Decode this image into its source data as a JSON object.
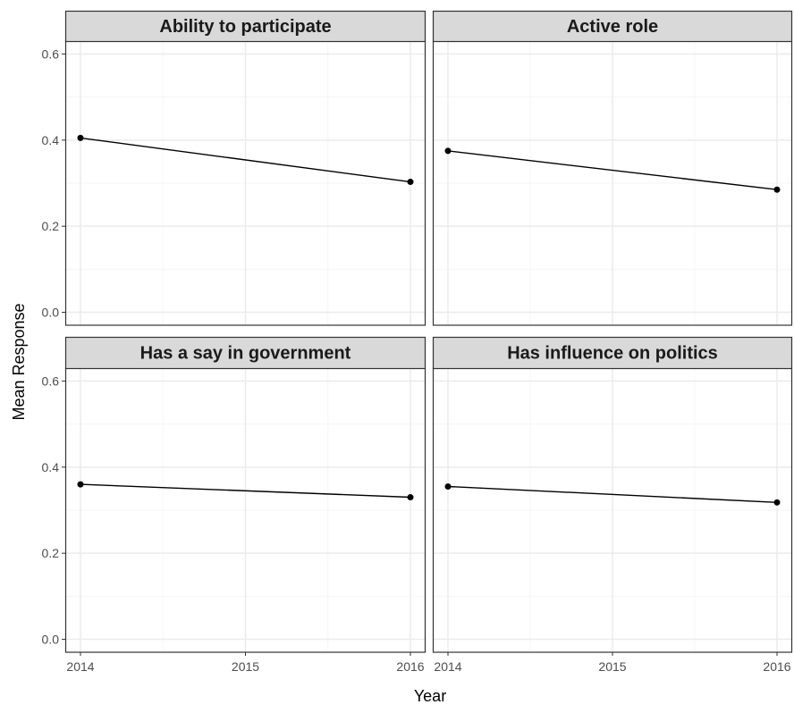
{
  "chart_data": {
    "type": "line",
    "xlabel": "Year",
    "ylabel": "Mean Response",
    "x_ticks": [
      2014,
      2015,
      2016
    ],
    "y_ticks": [
      0.0,
      0.2,
      0.4,
      0.6
    ],
    "y_tick_labels": [
      "0.0",
      "0.2",
      "0.4",
      "0.6"
    ],
    "xlim": [
      2014,
      2016
    ],
    "ylim": [
      0.0,
      0.6
    ],
    "grid": true,
    "theme": "bw",
    "panels": [
      {
        "title": "Ability to participate",
        "x": [
          2014,
          2016
        ],
        "y": [
          0.405,
          0.303
        ]
      },
      {
        "title": "Active role",
        "x": [
          2014,
          2016
        ],
        "y": [
          0.375,
          0.285
        ]
      },
      {
        "title": "Has a say in government",
        "x": [
          2014,
          2016
        ],
        "y": [
          0.36,
          0.33
        ]
      },
      {
        "title": "Has influence on politics",
        "x": [
          2014,
          2016
        ],
        "y": [
          0.355,
          0.318
        ]
      }
    ],
    "colors": {
      "line": "#000000",
      "point": "#000000",
      "strip_fill": "#d9d9d9",
      "border": "#333333",
      "grid_major": "#ebebeb",
      "grid_minor": "#f5f5f5"
    }
  }
}
